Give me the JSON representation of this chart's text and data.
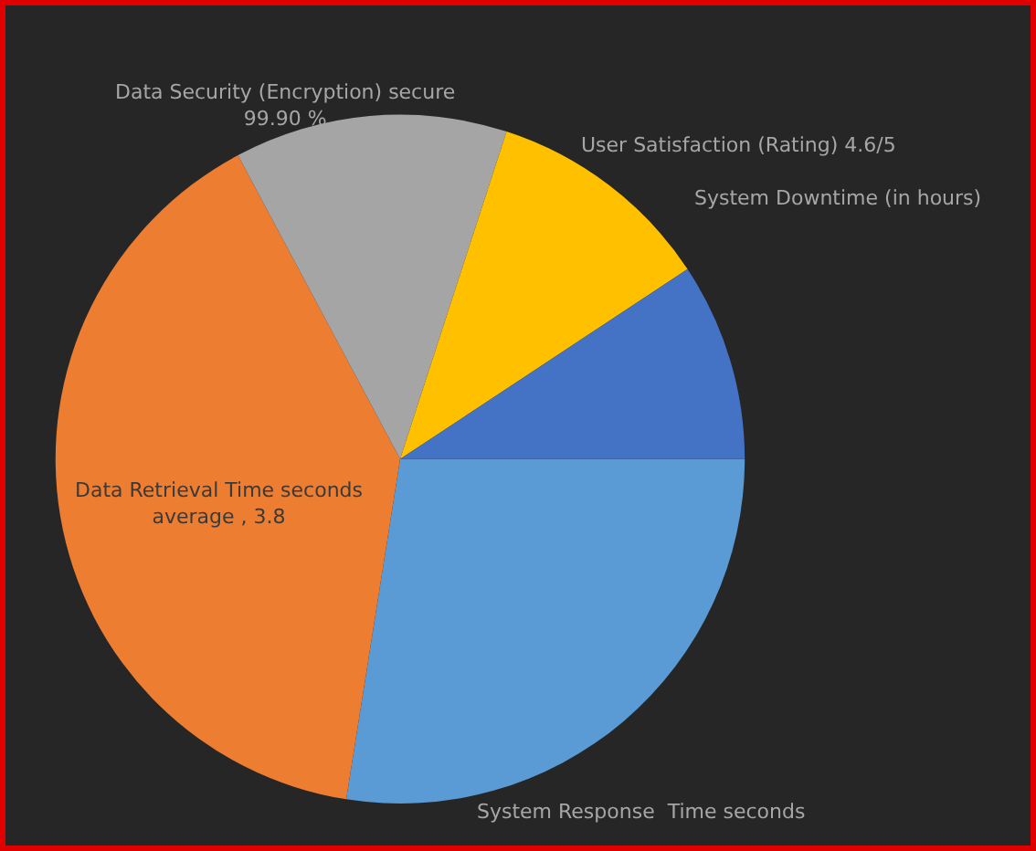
{
  "chart_data": {
    "type": "pie",
    "categories": [
      "System Response  Time seconds",
      "Data Retrieval Time seconds average , 3.8",
      "Data Security (Encryption) secure 99.90 %",
      "User Satisfaction (Rating) 4.6/5",
      "System Downtime (in hours)"
    ],
    "values": [
      27.5,
      39.7,
      12.8,
      10.7,
      9.3
    ],
    "colors": [
      "#5b9bd5",
      "#ed7d31",
      "#a5a5a5",
      "#ffc000",
      "#4472c4"
    ]
  }
}
